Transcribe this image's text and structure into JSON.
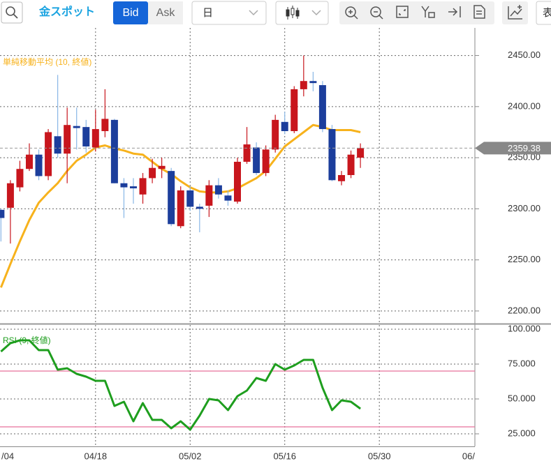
{
  "toolbar": {
    "symbol": "金スポット",
    "bid": "Bid",
    "ask": "Ask",
    "period": "日",
    "cut_button": "表"
  },
  "chart_data": [
    {
      "type": "candlestick",
      "xlim": [
        -0.1,
        50.1
      ],
      "xticks": [
        {
          "value": 0,
          "label": "/04"
        },
        {
          "value": 10,
          "label": "04/18"
        },
        {
          "value": 20,
          "label": "05/02"
        },
        {
          "value": 30,
          "label": "05/16"
        },
        {
          "value": 40,
          "label": "05/30"
        },
        {
          "value": 50,
          "label": "06/"
        }
      ],
      "ylim": [
        2189,
        2477
      ],
      "yticks": [
        {
          "value": 2200,
          "label": "2200.00"
        },
        {
          "value": 2250,
          "label": "2250.00"
        },
        {
          "value": 2300,
          "label": "2300.00"
        },
        {
          "value": 2350,
          "label": "2350.00"
        },
        {
          "value": 2400,
          "label": "2400.00"
        },
        {
          "value": 2450,
          "label": "2450.00"
        }
      ],
      "grid": true,
      "last_price": 2359.38,
      "candles": {
        "up_color": "#c8161d",
        "down_color": "#1c3e9c",
        "down_wick_color": "#88b6e6",
        "open": [
          2299,
          2301,
          2321,
          2339,
          2353,
          2332,
          2371,
          2354,
          2381,
          2380,
          2360,
          2376,
          2387,
          2325,
          2322,
          2314,
          2330,
          2339,
          2337,
          2283,
          2318,
          2302,
          2303,
          2323,
          2313,
          2307,
          2346,
          2360,
          2335,
          2358,
          2385,
          2376,
          2417,
          2425,
          2421,
          2378,
          2327,
          2333,
          2350
        ],
        "high": [
          2300,
          2328,
          2347,
          2364,
          2358,
          2378,
          2431,
          2399,
          2399,
          2387,
          2397,
          2417,
          2388,
          2330,
          2330,
          2335,
          2349,
          2350,
          2340,
          2322,
          2322,
          2305,
          2328,
          2330,
          2318,
          2350,
          2380,
          2365,
          2362,
          2392,
          2395,
          2420,
          2450,
          2434,
          2425,
          2382,
          2337,
          2357,
          2364
        ],
        "low": [
          2268,
          2266,
          2317,
          2337,
          2328,
          2328,
          2350,
          2325,
          2358,
          2355,
          2356,
          2370,
          2325,
          2291,
          2305,
          2305,
          2325,
          2330,
          2283,
          2281,
          2298,
          2277,
          2292,
          2310,
          2303,
          2305,
          2344,
          2333,
          2332,
          2355,
          2373,
          2374,
          2410,
          2415,
          2375,
          2327,
          2323,
          2330,
          2340
        ],
        "close": [
          2291,
          2325,
          2339,
          2353,
          2332,
          2375,
          2354,
          2382,
          2379,
          2361,
          2378,
          2388,
          2325,
          2321,
          2320,
          2330,
          2340,
          2342,
          2285,
          2318,
          2302,
          2300,
          2323,
          2314,
          2308,
          2346,
          2363,
          2335,
          2358,
          2387,
          2376,
          2417,
          2425,
          2423,
          2378,
          2328,
          2333,
          2353,
          2359.38
        ]
      },
      "series": [
        {
          "name": "単純移動平均 (10, 終値)",
          "color": "#f7b21c",
          "values": [
            2223,
            2246,
            2268,
            2289,
            2306,
            2316,
            2325,
            2337,
            2347,
            2353,
            2360,
            2362,
            2359,
            2357,
            2354,
            2353,
            2346,
            2339,
            2334,
            2327,
            2321,
            2317,
            2316,
            2316,
            2317,
            2320,
            2325,
            2330,
            2337,
            2349,
            2361,
            2368,
            2375,
            2382,
            2380,
            2377,
            2377,
            2377,
            2375
          ]
        }
      ]
    },
    {
      "type": "line",
      "xlim": [
        -0.1,
        50.1
      ],
      "ylim": [
        16,
        103
      ],
      "yticks": [
        {
          "value": 25,
          "label": "25.000"
        },
        {
          "value": 50,
          "label": "50.000"
        },
        {
          "value": 75,
          "label": "75.000"
        },
        {
          "value": 100,
          "label": "100.000"
        }
      ],
      "grid": true,
      "ref_lines": [
        70,
        30
      ],
      "ref_color": "#e8709a",
      "series": [
        {
          "name": "RSI (9, 終値)",
          "color": "#1e9e1e",
          "values": [
            84,
            90,
            92,
            92,
            85,
            85,
            71,
            72,
            68,
            66,
            63,
            63,
            45,
            48,
            34,
            47,
            35,
            35,
            29,
            34,
            28,
            38,
            50,
            49,
            42,
            52,
            56,
            65,
            63,
            75,
            71,
            74,
            78,
            78,
            58,
            42,
            49,
            48,
            43
          ]
        }
      ]
    }
  ]
}
